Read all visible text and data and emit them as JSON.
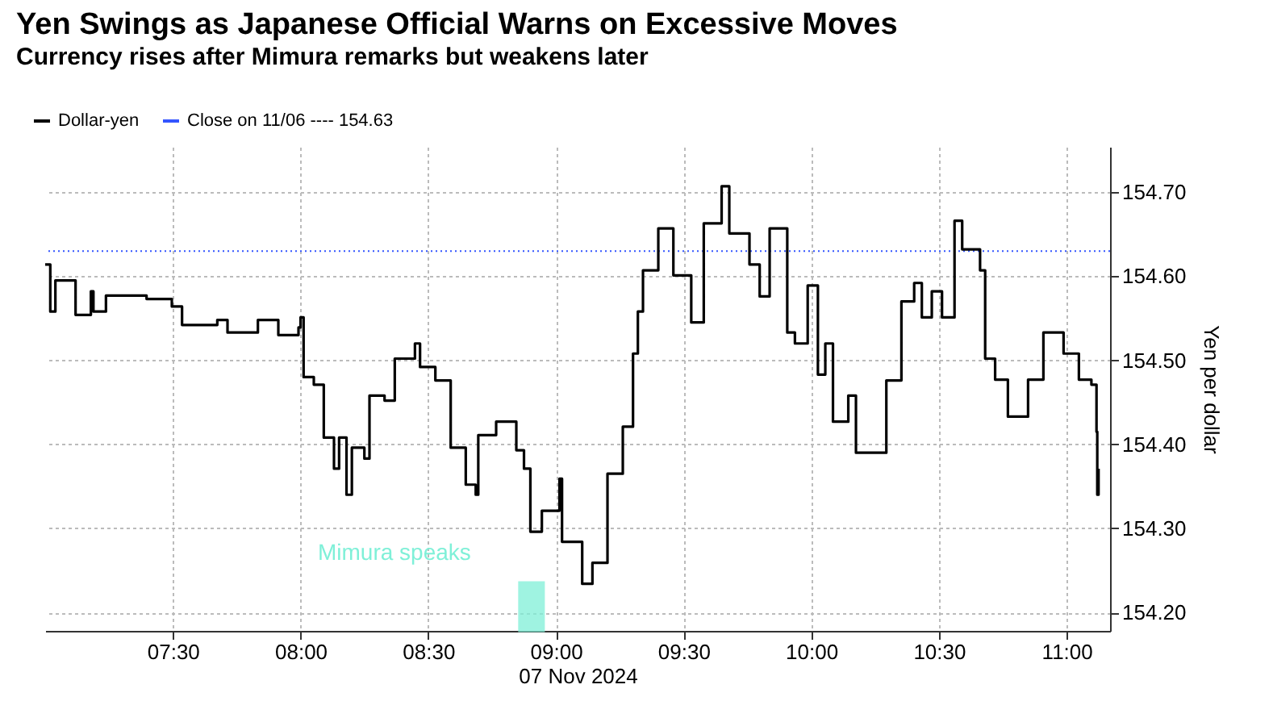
{
  "chart_data": {
    "type": "step",
    "title": "Yen Swings as Japanese Official Warns on Excessive Moves",
    "subtitle": "Currency rises after Mimura remarks but weakens later",
    "xlabel": "07 Nov 2024",
    "ylabel": "Yen per dollar",
    "x": [
      7.0,
      7.02,
      7.04,
      7.119,
      7.179,
      7.189,
      7.238,
      7.397,
      7.496,
      7.536,
      7.674,
      7.714,
      7.833,
      7.913,
      7.992,
      8.0,
      8.012,
      8.052,
      8.091,
      8.131,
      8.151,
      8.18,
      8.201,
      8.25,
      8.27,
      8.329,
      8.369,
      8.448,
      8.468,
      8.528,
      8.588,
      8.647,
      8.686,
      8.696,
      8.766,
      8.845,
      8.875,
      8.9,
      8.945,
      9.014,
      9.024,
      9.103,
      9.143,
      9.202,
      9.262,
      9.302,
      9.321,
      9.341,
      9.401,
      9.46,
      9.53,
      9.579,
      9.649,
      9.679,
      9.758,
      9.798,
      9.837,
      9.906,
      9.936,
      9.986,
      10.026,
      10.055,
      10.085,
      10.145,
      10.175,
      10.254,
      10.294,
      10.353,
      10.403,
      10.433,
      10.472,
      10.512,
      10.561,
      10.591,
      10.661,
      10.681,
      10.72,
      10.77,
      10.849,
      10.909,
      10.988,
      11.048,
      11.097,
      11.117,
      11.12,
      11.125
    ],
    "series": [
      {
        "name": "Dollar-yen",
        "color": "#000000",
        "values": [
          154.614,
          154.558,
          154.595,
          154.554,
          154.582,
          154.558,
          154.577,
          154.573,
          154.564,
          154.542,
          154.548,
          154.533,
          154.548,
          154.53,
          154.539,
          154.551,
          154.48,
          154.471,
          154.408,
          154.371,
          154.408,
          154.34,
          154.396,
          154.383,
          154.458,
          154.452,
          154.502,
          154.52,
          154.492,
          154.476,
          154.396,
          154.352,
          154.34,
          154.411,
          154.427,
          154.393,
          154.371,
          154.296,
          154.321,
          154.359,
          154.284,
          154.234,
          154.259,
          154.365,
          154.421,
          154.508,
          154.558,
          154.607,
          154.657,
          154.601,
          154.545,
          154.663,
          154.707,
          154.651,
          154.614,
          154.576,
          154.657,
          154.533,
          154.52,
          154.589,
          154.483,
          154.52,
          154.427,
          154.458,
          154.39,
          154.39,
          154.476,
          154.57,
          154.592,
          154.551,
          154.582,
          154.551,
          154.666,
          154.632,
          154.607,
          154.502,
          154.477,
          154.433,
          154.477,
          154.533,
          154.508,
          154.477,
          154.471,
          154.415,
          154.34,
          154.371
        ]
      }
    ],
    "xlim": [
      7.0,
      11.17
    ],
    "xticks": [
      {
        "value": 7.5,
        "label": "07:30"
      },
      {
        "value": 8,
        "label": "08:00"
      },
      {
        "value": 8.5,
        "label": "08:30"
      },
      {
        "value": 9,
        "label": "09:00"
      },
      {
        "value": 9.5,
        "label": "09:30"
      },
      {
        "value": 10,
        "label": "10:00"
      },
      {
        "value": 10.5,
        "label": "10:30"
      },
      {
        "value": 11,
        "label": "11:00"
      }
    ],
    "ylim": [
      154.178,
      154.754
    ],
    "yticks": [
      {
        "value": 154.2,
        "label": "154.20"
      },
      {
        "value": 154.3,
        "label": "154.30"
      },
      {
        "value": 154.4,
        "label": "154.40"
      },
      {
        "value": 154.5,
        "label": "154.50"
      },
      {
        "value": 154.6,
        "label": "154.60"
      },
      {
        "value": 154.7,
        "label": "154.70"
      }
    ],
    "ref_lines": [
      {
        "axis": "y",
        "value": 154.63,
        "label": "Close on 11/06 ---- 154.63",
        "color": "#3355ff",
        "line_style": "dotted"
      }
    ],
    "bands": [
      {
        "axis": "x",
        "from": 8.857,
        "to": 8.952,
        "label": "Mimura speaks",
        "color": "#7ff0d8"
      }
    ],
    "grid": true,
    "legend": "top left"
  }
}
